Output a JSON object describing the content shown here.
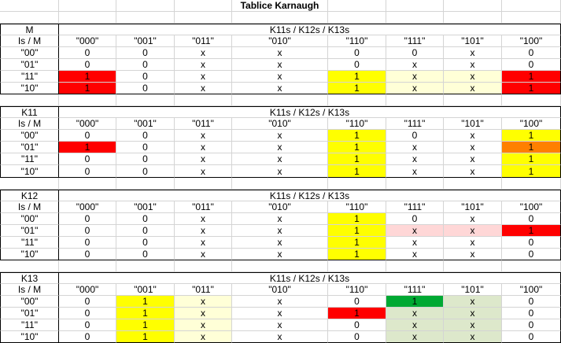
{
  "title": "Tablice Karnaugh",
  "header_vars": "K11s / K12s / K13s",
  "row_header_label": "Is / M",
  "columns": [
    "\"000\"",
    "\"001\"",
    "\"011\"",
    "\"010\"",
    "\"110\"",
    "\"111\"",
    "\"101\"",
    "\"100\""
  ],
  "rows": [
    "\"00\"",
    "\"01\"",
    "\"11\"",
    "\"10\""
  ],
  "colors": {
    "red": "#ff0000",
    "yellow": "#ffff00",
    "light_yellow": "#ffffd7",
    "orange": "#ff8000",
    "light_pink": "#ffd7d7",
    "green": "#00a933",
    "light_green": "#dde8cb"
  },
  "tables": [
    {
      "name": "M",
      "cells": [
        [
          "0",
          "0",
          "x",
          "x",
          "0",
          "0",
          "x",
          "0"
        ],
        [
          "0",
          "0",
          "x",
          "x",
          "0",
          "x",
          "x",
          "0"
        ],
        [
          "1",
          "0",
          "x",
          "x",
          "1",
          "x",
          "x",
          "1"
        ],
        [
          "1",
          "0",
          "x",
          "x",
          "1",
          "x",
          "x",
          "1"
        ]
      ],
      "fills": [
        [
          "",
          "",
          "",
          "",
          "",
          "",
          "",
          ""
        ],
        [
          "",
          "",
          "",
          "",
          "",
          "",
          "",
          ""
        ],
        [
          "red",
          "",
          "",
          "",
          "yellow",
          "light_yellow",
          "light_yellow",
          "red"
        ],
        [
          "red",
          "",
          "",
          "",
          "yellow",
          "light_yellow",
          "light_yellow",
          "red"
        ]
      ]
    },
    {
      "name": "K11",
      "cells": [
        [
          "0",
          "0",
          "x",
          "x",
          "1",
          "0",
          "x",
          "1"
        ],
        [
          "1",
          "0",
          "x",
          "x",
          "1",
          "x",
          "x",
          "1"
        ],
        [
          "0",
          "0",
          "x",
          "x",
          "1",
          "x",
          "x",
          "1"
        ],
        [
          "0",
          "0",
          "x",
          "x",
          "1",
          "x",
          "x",
          "1"
        ]
      ],
      "fills": [
        [
          "",
          "",
          "",
          "",
          "yellow",
          "",
          "",
          "yellow"
        ],
        [
          "red",
          "",
          "",
          "",
          "yellow",
          "",
          "",
          "orange"
        ],
        [
          "",
          "",
          "",
          "",
          "yellow",
          "",
          "",
          "yellow"
        ],
        [
          "",
          "",
          "",
          "",
          "yellow",
          "",
          "",
          "yellow"
        ]
      ]
    },
    {
      "name": "K12",
      "cells": [
        [
          "0",
          "0",
          "x",
          "x",
          "1",
          "0",
          "x",
          "0"
        ],
        [
          "0",
          "0",
          "x",
          "x",
          "1",
          "x",
          "x",
          "1"
        ],
        [
          "0",
          "0",
          "x",
          "x",
          "1",
          "x",
          "x",
          "0"
        ],
        [
          "0",
          "0",
          "x",
          "x",
          "1",
          "x",
          "x",
          "0"
        ]
      ],
      "fills": [
        [
          "",
          "",
          "",
          "",
          "yellow",
          "",
          "",
          ""
        ],
        [
          "",
          "",
          "",
          "",
          "yellow",
          "light_pink",
          "light_pink",
          "red"
        ],
        [
          "",
          "",
          "",
          "",
          "yellow",
          "",
          "",
          ""
        ],
        [
          "",
          "",
          "",
          "",
          "yellow",
          "",
          "",
          ""
        ]
      ]
    },
    {
      "name": "K13",
      "cells": [
        [
          "0",
          "1",
          "x",
          "x",
          "0",
          "1",
          "x",
          "0"
        ],
        [
          "0",
          "1",
          "x",
          "x",
          "1",
          "x",
          "x",
          "0"
        ],
        [
          "0",
          "1",
          "x",
          "x",
          "0",
          "x",
          "x",
          "0"
        ],
        [
          "0",
          "1",
          "x",
          "x",
          "0",
          "x",
          "x",
          "0"
        ]
      ],
      "fills": [
        [
          "",
          "yellow",
          "light_yellow",
          "",
          "",
          "green",
          "light_green",
          ""
        ],
        [
          "",
          "yellow",
          "light_yellow",
          "",
          "red",
          "light_green",
          "light_green",
          ""
        ],
        [
          "",
          "yellow",
          "light_yellow",
          "",
          "",
          "light_green",
          "light_green",
          ""
        ],
        [
          "",
          "yellow",
          "light_yellow",
          "",
          "",
          "light_green",
          "light_green",
          ""
        ]
      ]
    }
  ]
}
